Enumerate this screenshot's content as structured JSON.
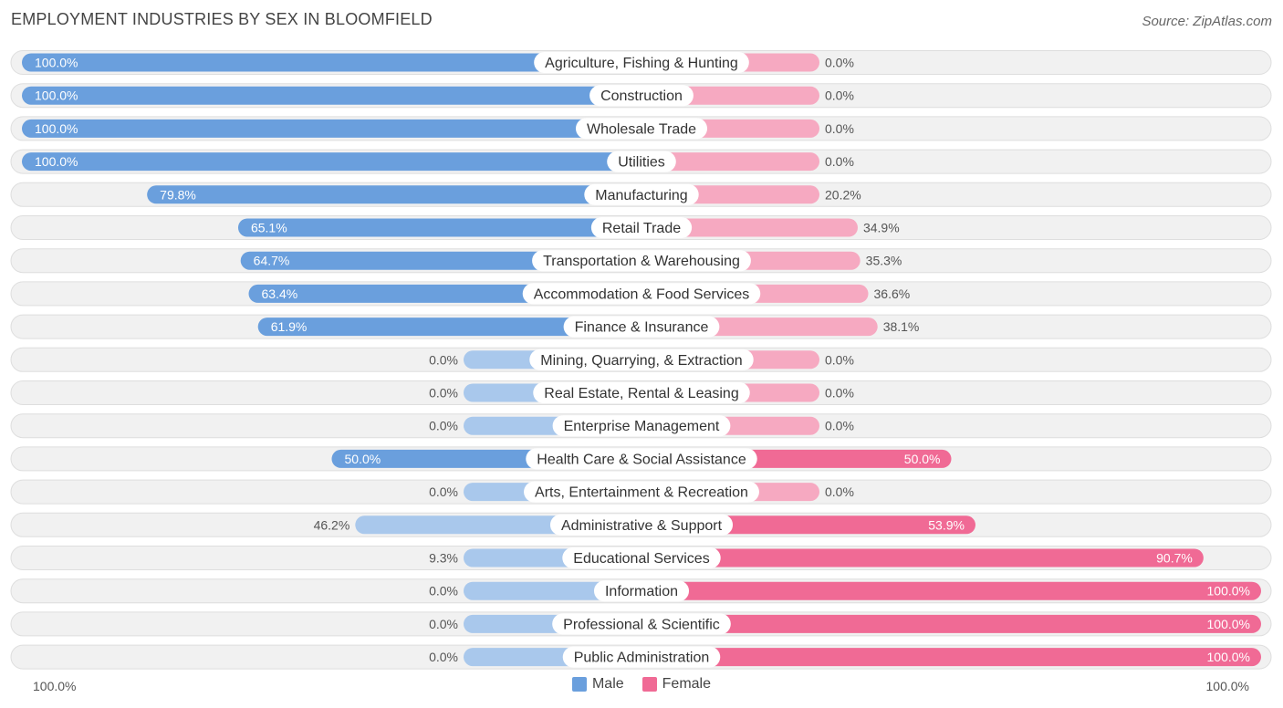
{
  "title": "EMPLOYMENT INDUSTRIES BY SEX IN BLOOMFIELD",
  "source": "Source: ZipAtlas.com",
  "legend": {
    "male_label": "Male",
    "female_label": "Female"
  },
  "axis": {
    "left_label": "100.0%",
    "right_label": "100.0%"
  },
  "colors": {
    "male_strong": "#6a9fdd",
    "male_light": "#a9c8ec",
    "female_strong": "#f06a95",
    "female_light": "#f6a9c1",
    "row_bg": "#f1f1f1",
    "row_border": "#dedede"
  },
  "chart_data": {
    "type": "bar",
    "orientation": "horizontal-diverging",
    "title": "EMPLOYMENT INDUSTRIES BY SEX IN BLOOMFIELD",
    "xlim": [
      -100,
      100
    ],
    "categories": [
      "Agriculture, Fishing & Hunting",
      "Construction",
      "Wholesale Trade",
      "Utilities",
      "Manufacturing",
      "Retail Trade",
      "Transportation & Warehousing",
      "Accommodation & Food Services",
      "Finance & Insurance",
      "Mining, Quarrying, & Extraction",
      "Real Estate, Rental & Leasing",
      "Enterprise Management",
      "Health Care & Social Assistance",
      "Arts, Entertainment & Recreation",
      "Administrative & Support",
      "Educational Services",
      "Information",
      "Professional & Scientific",
      "Public Administration"
    ],
    "series": [
      {
        "name": "Male",
        "values": [
          100.0,
          100.0,
          100.0,
          100.0,
          79.8,
          65.1,
          64.7,
          63.4,
          61.9,
          0.0,
          0.0,
          0.0,
          50.0,
          0.0,
          46.2,
          9.3,
          0.0,
          0.0,
          0.0
        ],
        "labels": [
          "100.0%",
          "100.0%",
          "100.0%",
          "100.0%",
          "79.8%",
          "65.1%",
          "64.7%",
          "63.4%",
          "61.9%",
          "0.0%",
          "0.0%",
          "0.0%",
          "50.0%",
          "0.0%",
          "46.2%",
          "9.3%",
          "0.0%",
          "0.0%",
          "0.0%"
        ]
      },
      {
        "name": "Female",
        "values": [
          0.0,
          0.0,
          0.0,
          0.0,
          20.2,
          34.9,
          35.3,
          36.6,
          38.1,
          0.0,
          0.0,
          0.0,
          50.0,
          0.0,
          53.9,
          90.7,
          100.0,
          100.0,
          100.0
        ],
        "labels": [
          "0.0%",
          "0.0%",
          "0.0%",
          "0.0%",
          "20.2%",
          "34.9%",
          "35.3%",
          "36.6%",
          "38.1%",
          "0.0%",
          "0.0%",
          "0.0%",
          "50.0%",
          "0.0%",
          "53.9%",
          "90.7%",
          "100.0%",
          "100.0%",
          "100.0%"
        ]
      }
    ]
  }
}
